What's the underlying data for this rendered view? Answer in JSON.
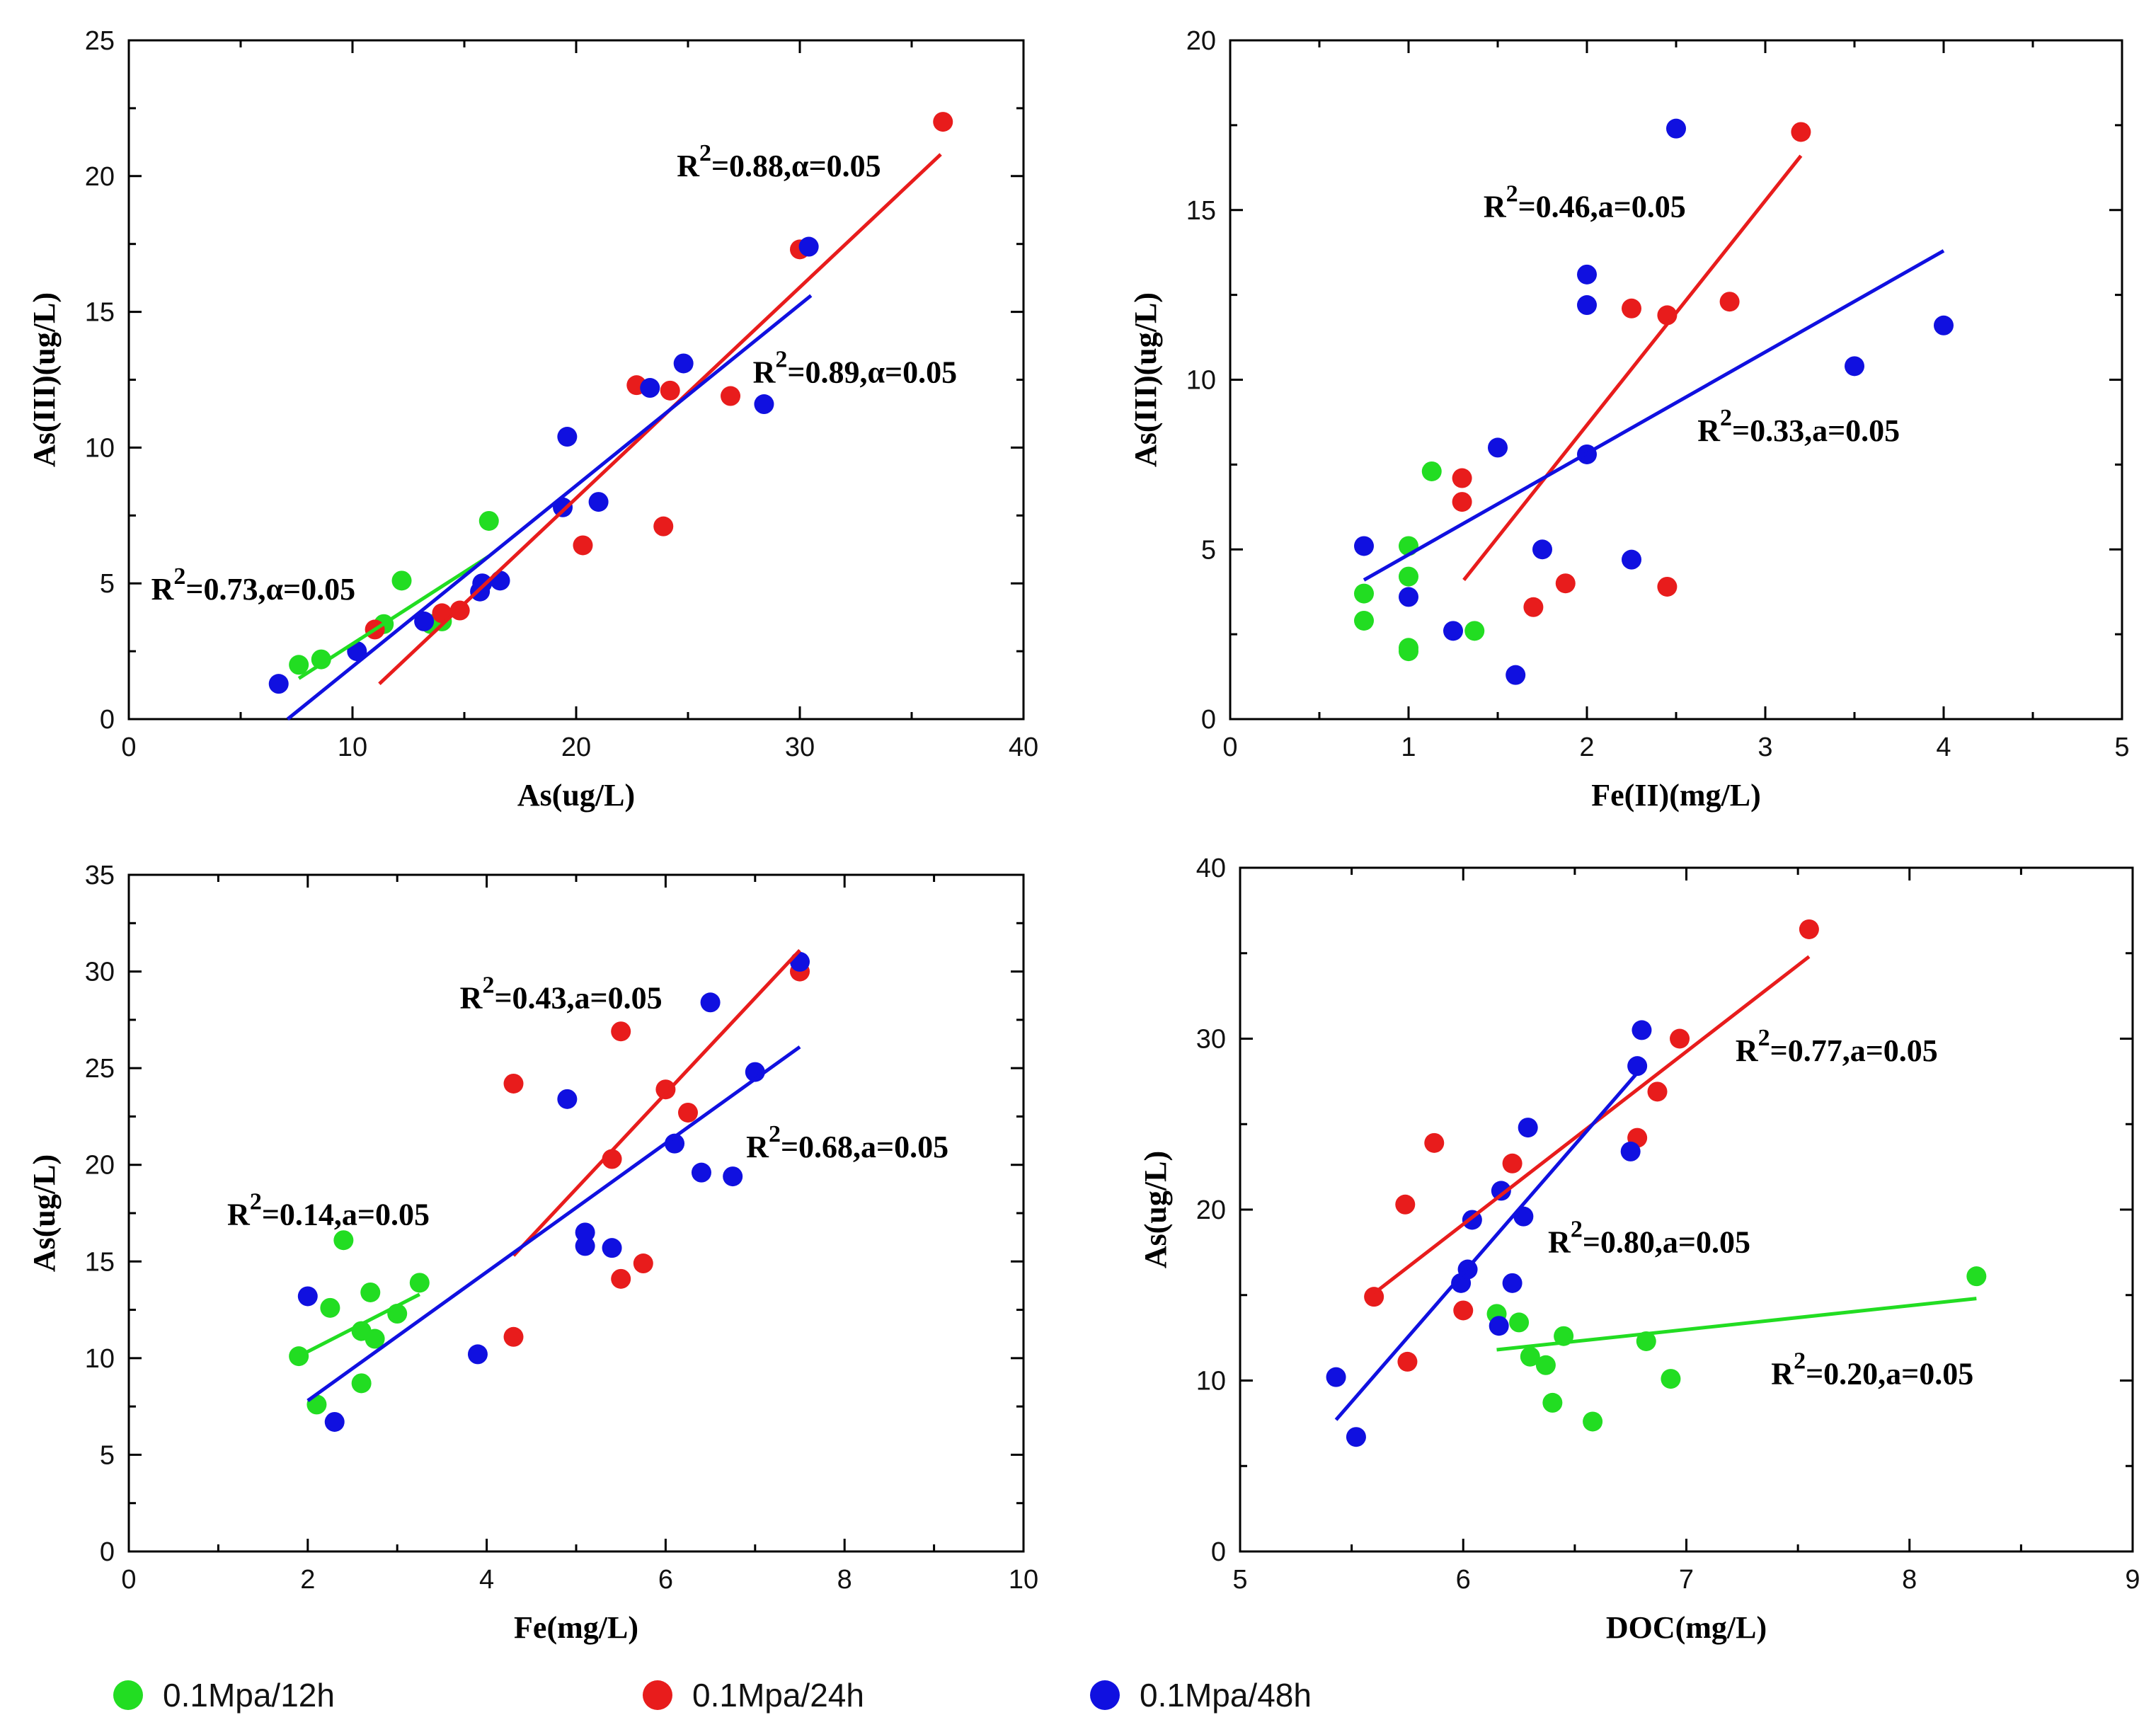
{
  "colors": {
    "green": "#22dd22",
    "red": "#e81c1c",
    "blue": "#1010e0",
    "axis": "#000000"
  },
  "legend": [
    {
      "label": "0.1Mpa/12h",
      "color": "#22dd22"
    },
    {
      "label": "0.1Mpa/24h",
      "color": "#e81c1c"
    },
    {
      "label": "0.1Mpa/48h",
      "color": "#1010e0"
    }
  ],
  "chart_data": [
    {
      "type": "scatter",
      "xlabel": "As(ug/L)",
      "ylabel": "As(III)(ug/L)",
      "xlim": [
        0,
        40
      ],
      "ylim": [
        0,
        25
      ],
      "xticks": [
        0,
        10,
        20,
        30,
        40
      ],
      "yticks": [
        0,
        5,
        10,
        15,
        20,
        25
      ],
      "xminor": 5,
      "yminor": 2.5,
      "series": [
        {
          "color": "green",
          "points": [
            [
              7.6,
              2.0
            ],
            [
              8.6,
              2.2
            ],
            [
              11.4,
              3.5
            ],
            [
              12.2,
              5.1
            ],
            [
              13.5,
              3.5
            ],
            [
              14.0,
              3.6
            ],
            [
              16.1,
              7.3
            ]
          ],
          "fit": [
            [
              7.6,
              1.5
            ],
            [
              16.1,
              6.0
            ]
          ]
        },
        {
          "color": "red",
          "points": [
            [
              11.0,
              3.3
            ],
            [
              14.0,
              3.9
            ],
            [
              14.8,
              4.0
            ],
            [
              20.3,
              6.4
            ],
            [
              22.7,
              12.3
            ],
            [
              23.9,
              7.1
            ],
            [
              24.2,
              12.1
            ],
            [
              26.9,
              11.9
            ],
            [
              30.0,
              17.3
            ],
            [
              36.4,
              22.0
            ]
          ],
          "fit": [
            [
              11.2,
              1.3
            ],
            [
              36.3,
              20.8
            ]
          ]
        },
        {
          "color": "blue",
          "points": [
            [
              6.7,
              1.3
            ],
            [
              10.2,
              2.5
            ],
            [
              13.2,
              3.6
            ],
            [
              15.7,
              4.7
            ],
            [
              15.8,
              5.0
            ],
            [
              16.6,
              5.1
            ],
            [
              19.4,
              7.8
            ],
            [
              19.6,
              10.4
            ],
            [
              21.0,
              8.0
            ],
            [
              23.3,
              12.2
            ],
            [
              24.8,
              13.1
            ],
            [
              28.4,
              11.6
            ],
            [
              30.4,
              17.4
            ]
          ],
          "fit": [
            [
              7.1,
              0.0
            ],
            [
              30.5,
              15.6
            ]
          ]
        }
      ],
      "annotations": [
        {
          "sup": "2",
          "text": "=0.88,α=0.05",
          "x": 24.5,
          "y": 20.0
        },
        {
          "sup": "2",
          "text": "=0.89,α=0.05",
          "x": 27.9,
          "y": 12.4
        },
        {
          "sup": "2",
          "text": "=0.73,α=0.05",
          "x": 1.0,
          "y": 4.4
        }
      ]
    },
    {
      "type": "scatter",
      "xlabel": "Fe(II)(mg/L)",
      "ylabel": "As(III)(ug/L)",
      "xlim": [
        0,
        5
      ],
      "ylim": [
        0,
        20
      ],
      "xticks": [
        0,
        1,
        2,
        3,
        4,
        5
      ],
      "yticks": [
        0,
        5,
        10,
        15,
        20
      ],
      "xminor": 0.5,
      "yminor": 2.5,
      "series": [
        {
          "color": "green",
          "points": [
            [
              0.75,
              3.7
            ],
            [
              0.75,
              2.9
            ],
            [
              1.0,
              5.1
            ],
            [
              1.0,
              4.2
            ],
            [
              1.0,
              2.1
            ],
            [
              1.0,
              2.0
            ],
            [
              1.13,
              7.3
            ],
            [
              1.37,
              2.6
            ]
          ],
          "fit": null
        },
        {
          "color": "red",
          "points": [
            [
              1.3,
              7.1
            ],
            [
              1.3,
              6.4
            ],
            [
              1.7,
              3.3
            ],
            [
              1.88,
              4.0
            ],
            [
              2.25,
              12.1
            ],
            [
              2.45,
              11.9
            ],
            [
              2.45,
              3.9
            ],
            [
              2.8,
              12.3
            ],
            [
              3.2,
              17.3
            ]
          ],
          "fit": [
            [
              1.31,
              4.1
            ],
            [
              3.2,
              16.6
            ]
          ]
        },
        {
          "color": "blue",
          "points": [
            [
              0.75,
              5.1
            ],
            [
              1.0,
              3.6
            ],
            [
              1.25,
              2.6
            ],
            [
              1.5,
              8.0
            ],
            [
              1.6,
              1.3
            ],
            [
              1.75,
              5.0
            ],
            [
              2.0,
              13.1
            ],
            [
              2.0,
              12.2
            ],
            [
              2.0,
              7.8
            ],
            [
              2.25,
              4.7
            ],
            [
              2.5,
              17.4
            ],
            [
              3.5,
              10.4
            ],
            [
              4.0,
              11.6
            ]
          ],
          "fit": [
            [
              0.75,
              4.1
            ],
            [
              4.0,
              13.8
            ]
          ]
        }
      ],
      "annotations": [
        {
          "sup": "2",
          "text": "=0.46,a=0.05",
          "x": 1.42,
          "y": 14.8
        },
        {
          "sup": "2",
          "text": "=0.33,a=0.05",
          "x": 2.62,
          "y": 8.2
        }
      ]
    },
    {
      "type": "scatter",
      "xlabel": "Fe(mg/L)",
      "ylabel": "As(ug/L)",
      "xlim": [
        0,
        10
      ],
      "ylim": [
        0,
        35
      ],
      "xticks": [
        0,
        2,
        4,
        6,
        8,
        10
      ],
      "yticks": [
        0,
        5,
        10,
        15,
        20,
        25,
        30,
        35
      ],
      "xminor": 1,
      "yminor": 2.5,
      "series": [
        {
          "color": "green",
          "points": [
            [
              1.9,
              10.1
            ],
            [
              2.1,
              7.6
            ],
            [
              2.25,
              12.6
            ],
            [
              2.4,
              16.1
            ],
            [
              2.6,
              8.7
            ],
            [
              2.6,
              11.4
            ],
            [
              2.7,
              13.4
            ],
            [
              2.75,
              11.0
            ],
            [
              3.0,
              12.3
            ],
            [
              3.25,
              13.9
            ]
          ],
          "fit": [
            [
              1.9,
              10.1
            ],
            [
              3.25,
              13.3
            ]
          ]
        },
        {
          "color": "red",
          "points": [
            [
              4.3,
              24.2
            ],
            [
              4.3,
              11.1
            ],
            [
              5.4,
              20.3
            ],
            [
              5.5,
              26.9
            ],
            [
              5.5,
              14.1
            ],
            [
              5.75,
              14.9
            ],
            [
              6.0,
              23.9
            ],
            [
              6.25,
              22.7
            ],
            [
              7.5,
              30.0
            ]
          ],
          "fit": [
            [
              4.3,
              15.3
            ],
            [
              7.5,
              31.1
            ]
          ]
        },
        {
          "color": "blue",
          "points": [
            [
              2.0,
              13.2
            ],
            [
              2.3,
              6.7
            ],
            [
              3.9,
              10.2
            ],
            [
              4.9,
              23.4
            ],
            [
              5.1,
              16.5
            ],
            [
              5.1,
              15.8
            ],
            [
              5.4,
              15.7
            ],
            [
              6.1,
              21.1
            ],
            [
              6.4,
              19.6
            ],
            [
              6.5,
              28.4
            ],
            [
              6.75,
              19.4
            ],
            [
              7.0,
              24.8
            ],
            [
              7.5,
              30.5
            ]
          ],
          "fit": [
            [
              2.0,
              7.8
            ],
            [
              7.5,
              26.1
            ]
          ]
        }
      ],
      "annotations": [
        {
          "sup": "2",
          "text": "=0.43,a=0.05",
          "x": 3.7,
          "y": 28.1
        },
        {
          "sup": "2",
          "text": "=0.68,a=0.05",
          "x": 6.9,
          "y": 20.4
        },
        {
          "sup": "2",
          "text": "=0.14,a=0.05",
          "x": 1.1,
          "y": 16.9
        }
      ]
    },
    {
      "type": "scatter",
      "xlabel": "DOC(mg/L)",
      "ylabel": "As(ug/L)",
      "xlim": [
        5,
        9
      ],
      "ylim": [
        0,
        40
      ],
      "xticks": [
        5,
        6,
        7,
        8,
        9
      ],
      "yticks": [
        0,
        10,
        20,
        30,
        40
      ],
      "xminor": 0.5,
      "yminor": 5,
      "series": [
        {
          "color": "green",
          "points": [
            [
              6.15,
              13.9
            ],
            [
              6.25,
              13.4
            ],
            [
              6.3,
              11.4
            ],
            [
              6.37,
              10.9
            ],
            [
              6.4,
              8.7
            ],
            [
              6.45,
              12.6
            ],
            [
              6.58,
              7.6
            ],
            [
              6.82,
              12.3
            ],
            [
              6.93,
              10.1
            ],
            [
              8.3,
              16.1
            ]
          ],
          "fit": [
            [
              6.15,
              11.8
            ],
            [
              8.3,
              14.8
            ]
          ]
        },
        {
          "color": "red",
          "points": [
            [
              5.6,
              14.9
            ],
            [
              5.74,
              20.3
            ],
            [
              5.75,
              11.1
            ],
            [
              5.87,
              23.9
            ],
            [
              6.0,
              14.1
            ],
            [
              6.22,
              22.7
            ],
            [
              6.78,
              24.2
            ],
            [
              6.87,
              26.9
            ],
            [
              6.97,
              30.0
            ],
            [
              7.55,
              36.4
            ]
          ],
          "fit": [
            [
              5.6,
              15.1
            ],
            [
              7.55,
              34.8
            ]
          ]
        },
        {
          "color": "blue",
          "points": [
            [
              5.43,
              10.2
            ],
            [
              5.52,
              6.7
            ],
            [
              5.99,
              15.7
            ],
            [
              6.02,
              16.5
            ],
            [
              6.04,
              19.4
            ],
            [
              6.16,
              13.2
            ],
            [
              6.17,
              21.1
            ],
            [
              6.22,
              15.7
            ],
            [
              6.27,
              19.6
            ],
            [
              6.29,
              24.8
            ],
            [
              6.75,
              23.4
            ],
            [
              6.78,
              28.4
            ],
            [
              6.8,
              30.5
            ]
          ],
          "fit": [
            [
              5.43,
              7.7
            ],
            [
              6.78,
              28.0
            ]
          ]
        }
      ],
      "annotations": [
        {
          "sup": "2",
          "text": "=0.77,a=0.05",
          "x": 7.22,
          "y": 28.7
        },
        {
          "sup": "2",
          "text": "=0.80,a=0.05",
          "x": 6.38,
          "y": 17.5
        },
        {
          "sup": "2",
          "text": "=0.20,a=0.05",
          "x": 7.38,
          "y": 9.8
        }
      ]
    }
  ]
}
